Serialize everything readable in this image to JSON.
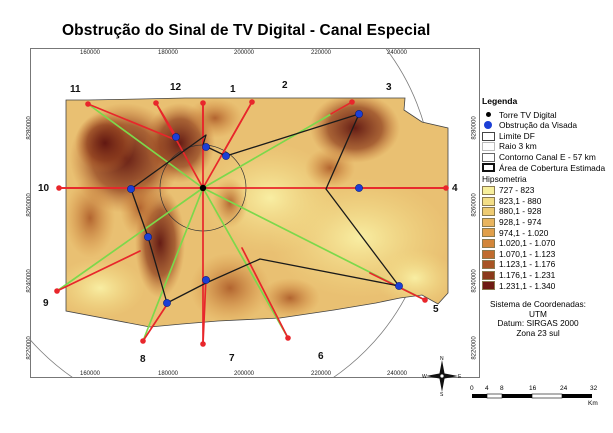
{
  "title": "Obstrução do Sinal de TV Digital - Canal Especial",
  "map": {
    "x_ticks": [
      "160000",
      "180000",
      "200000",
      "220000",
      "240000"
    ],
    "y_ticks": [
      "8280000",
      "8260000",
      "8240000",
      "8220000"
    ],
    "radial_labels": [
      "1",
      "2",
      "3",
      "4",
      "5",
      "6",
      "7",
      "8",
      "9",
      "10",
      "11",
      "12"
    ],
    "colors": {
      "radial_clear": "#e8262b",
      "radial_obstructed": "#7cd84b",
      "coverage_line": "#1a1a1a",
      "tower": "#000000",
      "obstruction": "#1b3fd6"
    }
  },
  "legend": {
    "title": "Legenda",
    "items": [
      {
        "label": "Torre TV Digital",
        "symbol": "tower-icon"
      },
      {
        "label": "Obstrução da Visada",
        "symbol": "obstruction-point-icon"
      },
      {
        "label": "Limite DF",
        "symbol": "boundary-icon"
      },
      {
        "label": "Raio 3 km",
        "symbol": "radius-icon"
      },
      {
        "label": "Contorno Canal E - 57 km",
        "symbol": "contour-icon"
      },
      {
        "label": "Área de Cobertura Estimada",
        "symbol": "coverage-area-icon"
      }
    ],
    "hyps_title": "Hipsometria",
    "hypsometry": [
      {
        "range": "727 - 823",
        "color": "#f7ef9c"
      },
      {
        "range": "823,1 - 880",
        "color": "#f3de86"
      },
      {
        "range": "880,1 - 928",
        "color": "#eecb72"
      },
      {
        "range": "928,1 - 974",
        "color": "#e8b45e"
      },
      {
        "range": "974,1 - 1.020",
        "color": "#e09f4a"
      },
      {
        "range": "1.020,1 - 1.070",
        "color": "#d3863a"
      },
      {
        "range": "1.070,1 - 1.123",
        "color": "#c06b2e"
      },
      {
        "range": "1.123,1 - 1.176",
        "color": "#a85424"
      },
      {
        "range": "1.176,1 - 1.231",
        "color": "#8c3a1b"
      },
      {
        "range": "1.231,1 - 1.340",
        "color": "#6e1a12"
      }
    ]
  },
  "crs": {
    "line1": "Sistema de Coordenadas: UTM",
    "line2": "Datum: SIRGAS 2000",
    "line3": "Zona 23 sul"
  },
  "north_arrow": {
    "n": "N",
    "s": "S",
    "e": "E",
    "w": "W"
  },
  "scale_bar": {
    "labels": [
      "0",
      "4",
      "8",
      "16",
      "24",
      "32"
    ],
    "unit": "Km"
  }
}
